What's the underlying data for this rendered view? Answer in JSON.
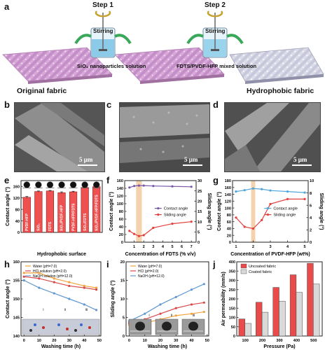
{
  "panels": {
    "a": "a",
    "b": "b",
    "c": "c",
    "d": "d",
    "e": "e",
    "f": "f",
    "g": "g",
    "h": "h",
    "i": "i",
    "j": "j"
  },
  "schematic": {
    "step1": "Step 1",
    "step2": "Step 2",
    "stirring1": "Stirring",
    "stirring2": "Stirring",
    "solution1": "SiO₂ nanoparticles  solution",
    "solution2": "FDTS/PVDF-HFP mixed solution",
    "original": "Original fabric",
    "hydrophobic": "Hydrophobic fabric"
  },
  "sem": {
    "scale_b": "5 μm",
    "scale_c": "5 μm",
    "scale_d": "5 μm"
  },
  "chart_data": [
    {
      "id": "e",
      "type": "bar",
      "categories": [
        "PVDF-HFP",
        "SiO₂",
        "FDTS",
        "SiO₂/PVDF-HFP",
        "PVDF-HFP/FDTS",
        "SiO₂/FDTS",
        "SiO₂/PVDF-HFP/FDTS"
      ],
      "values": [
        122,
        142,
        144,
        138,
        141,
        156,
        159
      ],
      "errors": [
        3,
        2,
        2,
        3,
        2,
        2,
        2
      ],
      "ylabel": "Contact angle (°)",
      "xlabel": "Hydrophobic surface",
      "ylim": [
        0,
        180
      ],
      "yticks": [
        0,
        40,
        80,
        120,
        160
      ],
      "colors": {
        "bar": "#ef5050",
        "bar_edge": "#8b1a1a"
      }
    },
    {
      "id": "f",
      "type": "line",
      "xlabel": "Concentration of FDTS (% v/v)",
      "ylabel": "Contact angle (°)",
      "ylabel2": "Sliding angle (°)",
      "x": [
        0.5,
        1,
        1.5,
        2,
        3,
        5,
        7
      ],
      "xlim": [
        0,
        7.5
      ],
      "xticks": [
        1,
        2,
        3,
        4,
        5,
        6,
        7
      ],
      "ylim": [
        0,
        160
      ],
      "yticks": [
        0,
        20,
        40,
        60,
        80,
        100,
        120,
        140,
        160
      ],
      "ylim2": [
        0,
        30
      ],
      "yticks2": [
        0,
        5,
        10,
        15,
        20,
        25,
        30
      ],
      "highlight_x": [
        1.2,
        1.8
      ],
      "series": [
        {
          "name": "Contact angle",
          "axis": "left",
          "values": [
            142,
            146,
            147,
            147,
            146,
            145,
            144
          ],
          "color": "#7a5aa8"
        },
        {
          "name": "Sliding angle",
          "axis": "right",
          "values": [
            5.5,
            4,
            3,
            3.4,
            7,
            9,
            10
          ],
          "color": "#e3403f"
        }
      ]
    },
    {
      "id": "g",
      "type": "line",
      "xlabel": "Concentration of PVDF-HFP (wt%)",
      "ylabel": "Contact angle (°)",
      "ylabel2": "Sliding angle (°)",
      "x": [
        1,
        1.5,
        2,
        2.5,
        3,
        4,
        5
      ],
      "xlim": [
        0.8,
        5.2
      ],
      "xticks": [
        1,
        2,
        3,
        4,
        5
      ],
      "ylim": [
        0,
        180
      ],
      "yticks": [
        0,
        20,
        40,
        60,
        80,
        100,
        120,
        140,
        160,
        180
      ],
      "ylim2": [
        0,
        10
      ],
      "yticks2": [
        0,
        2,
        4,
        6,
        8,
        10
      ],
      "highlight_x": [
        1.88,
        2.12
      ],
      "series": [
        {
          "name": "Contact angle",
          "axis": "left",
          "values": [
            148,
            152,
            157,
            155,
            151,
            148,
            145
          ],
          "color": "#4fa7d9"
        },
        {
          "name": "Sliding angle",
          "axis": "right",
          "values": [
            4,
            2.5,
            2.2,
            3.6,
            6.2,
            7,
            7
          ],
          "color": "#e3403f"
        }
      ]
    },
    {
      "id": "h",
      "type": "line",
      "xlabel": "Washing time (h)",
      "ylabel": "Contact angle (°)",
      "x": [
        0,
        10,
        20,
        30,
        40,
        48
      ],
      "xlim": [
        -2,
        51
      ],
      "xticks": [
        0,
        10,
        20,
        30,
        40,
        50
      ],
      "ylim": [
        140,
        160
      ],
      "yticks": [
        140,
        145,
        150,
        155,
        160
      ],
      "annotations": [
        "i",
        "ii",
        "iii"
      ],
      "series": [
        {
          "name": "Water (pH=7.0)",
          "values": [
            157,
            157,
            155.5,
            154.5,
            153.5,
            153
          ],
          "color": "#f4a23c"
        },
        {
          "name": "HCl solution (pH=2.0)",
          "values": [
            156,
            155.5,
            154.5,
            153.5,
            153,
            152.5
          ],
          "color": "#d84a4a"
        },
        {
          "name": "NaOH solution (pH=12.0)",
          "values": [
            155,
            153,
            151.5,
            150,
            148.5,
            147
          ],
          "color": "#6098d0"
        }
      ]
    },
    {
      "id": "i",
      "type": "line",
      "xlabel": "Washing time (h)",
      "ylabel": "Sliding angle (°)",
      "x": [
        0,
        10,
        20,
        30,
        40,
        48
      ],
      "xlim": [
        -2,
        51
      ],
      "xticks": [
        0,
        10,
        20,
        30,
        40,
        50
      ],
      "ylim": [
        0,
        20
      ],
      "yticks": [
        0,
        5,
        10,
        15,
        20
      ],
      "annotations": [
        "i",
        "ii",
        "iii"
      ],
      "series": [
        {
          "name": "Water (pH=7.0)",
          "values": [
            3,
            3.5,
            4.5,
            5.5,
            6,
            6.5
          ],
          "color": "#f4a23c"
        },
        {
          "name": "HCl (pH=2.0)",
          "values": [
            3.5,
            4.5,
            6,
            7.5,
            8.5,
            9
          ],
          "color": "#d84a4a"
        },
        {
          "name": "NaOH (pH=12.0)",
          "values": [
            4,
            6,
            8.5,
            10.5,
            12.5,
            14
          ],
          "color": "#6098d0"
        }
      ]
    },
    {
      "id": "j",
      "type": "bar",
      "xlabel": "Pressure (Pa)",
      "ylabel": "Air permeability (mm/s)",
      "categories": [
        "100",
        "200",
        "300",
        "400",
        "500"
      ],
      "ylim": [
        0,
        400
      ],
      "yticks": [
        0,
        50,
        100,
        150,
        200,
        250,
        300,
        350,
        400
      ],
      "series": [
        {
          "name": "Uncoated fabric",
          "values": [
            92,
            182,
            262,
            330,
            392
          ],
          "color": "#e94b4b"
        },
        {
          "name": "Coated fabric",
          "values": [
            68,
            128,
            188,
            235,
            280
          ],
          "color": "#d9d9d9"
        }
      ]
    }
  ]
}
